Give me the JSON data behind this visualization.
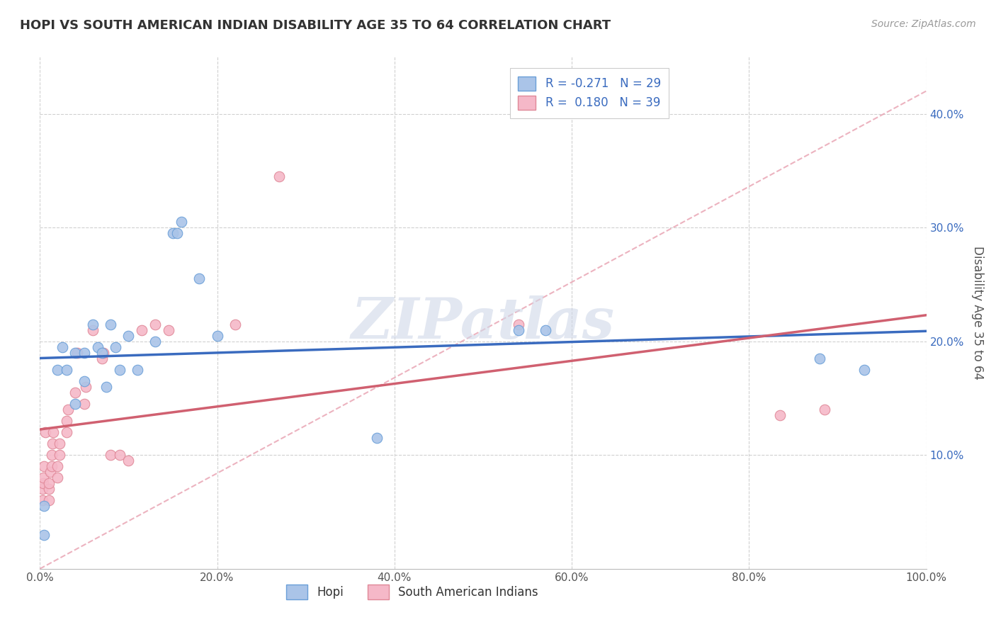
{
  "title": "HOPI VS SOUTH AMERICAN INDIAN DISABILITY AGE 35 TO 64 CORRELATION CHART",
  "source_text": "Source: ZipAtlas.com",
  "ylabel": "Disability Age 35 to 64",
  "xlim": [
    0.0,
    1.0
  ],
  "ylim": [
    0.0,
    0.45
  ],
  "xticks": [
    0.0,
    0.2,
    0.4,
    0.6,
    0.8,
    1.0
  ],
  "xticklabels": [
    "0.0%",
    "20.0%",
    "40.0%",
    "60.0%",
    "80.0%",
    "100.0%"
  ],
  "yticks": [
    0.1,
    0.2,
    0.3,
    0.4
  ],
  "yticklabels": [
    "10.0%",
    "20.0%",
    "30.0%",
    "40.0%"
  ],
  "hopi_color": "#aac4e8",
  "hopi_edge_color": "#6a9fd8",
  "hopi_line_color": "#3a6bbf",
  "south_american_color": "#f5b8c8",
  "south_american_edge_color": "#e08898",
  "south_american_line_color": "#d06070",
  "diag_line_color": "#e8a0b0",
  "hopi_R": -0.271,
  "hopi_N": 29,
  "south_american_R": 0.18,
  "south_american_N": 39,
  "watermark": "ZIPatlas",
  "hopi_x": [
    0.005,
    0.005,
    0.02,
    0.025,
    0.03,
    0.04,
    0.04,
    0.05,
    0.05,
    0.06,
    0.065,
    0.07,
    0.075,
    0.08,
    0.085,
    0.09,
    0.1,
    0.11,
    0.13,
    0.15,
    0.155,
    0.16,
    0.18,
    0.2,
    0.38,
    0.54,
    0.57,
    0.88,
    0.93
  ],
  "hopi_y": [
    0.055,
    0.03,
    0.175,
    0.195,
    0.175,
    0.19,
    0.145,
    0.19,
    0.165,
    0.215,
    0.195,
    0.19,
    0.16,
    0.215,
    0.195,
    0.175,
    0.205,
    0.175,
    0.2,
    0.295,
    0.295,
    0.305,
    0.255,
    0.205,
    0.115,
    0.21,
    0.21,
    0.185,
    0.175
  ],
  "south_x": [
    0.003,
    0.003,
    0.004,
    0.004,
    0.005,
    0.006,
    0.01,
    0.01,
    0.01,
    0.012,
    0.013,
    0.013,
    0.014,
    0.015,
    0.02,
    0.02,
    0.022,
    0.022,
    0.03,
    0.03,
    0.032,
    0.04,
    0.042,
    0.05,
    0.052,
    0.06,
    0.07,
    0.072,
    0.08,
    0.09,
    0.1,
    0.115,
    0.13,
    0.145,
    0.22,
    0.27,
    0.54,
    0.835,
    0.885
  ],
  "south_y": [
    0.06,
    0.07,
    0.075,
    0.08,
    0.09,
    0.12,
    0.06,
    0.07,
    0.075,
    0.085,
    0.09,
    0.1,
    0.11,
    0.12,
    0.08,
    0.09,
    0.1,
    0.11,
    0.12,
    0.13,
    0.14,
    0.155,
    0.19,
    0.145,
    0.16,
    0.21,
    0.185,
    0.19,
    0.1,
    0.1,
    0.095,
    0.21,
    0.215,
    0.21,
    0.215,
    0.345,
    0.215,
    0.135,
    0.14
  ],
  "background_color": "#ffffff",
  "grid_color": "#d0d0d0"
}
